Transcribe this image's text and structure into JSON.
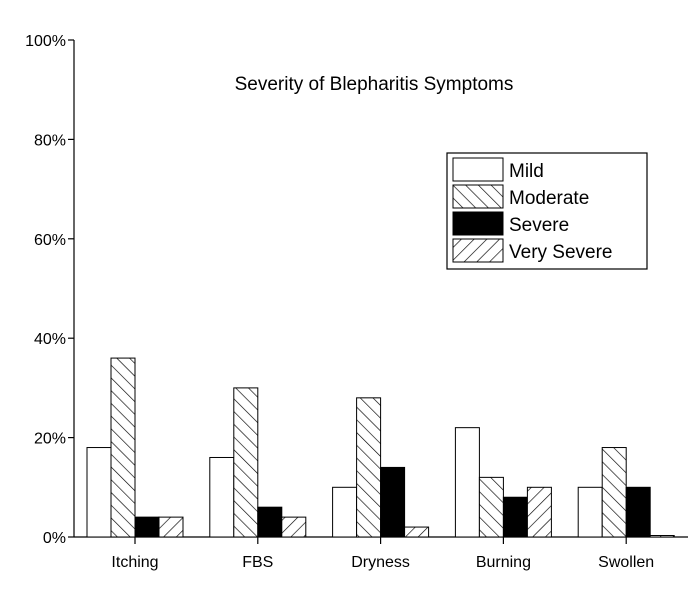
{
  "chart_data": {
    "type": "bar",
    "title": "Severity of Blepharitis Symptoms",
    "xlabel": "",
    "ylabel": "",
    "categories": [
      "Itching",
      "FBS",
      "Dryness",
      "Burning",
      "Swollen"
    ],
    "series": [
      {
        "name": "Mild",
        "values": [
          18,
          16,
          10,
          22,
          10
        ],
        "pattern": "empty"
      },
      {
        "name": "Moderate",
        "values": [
          36,
          30,
          28,
          12,
          18
        ],
        "pattern": "backslash"
      },
      {
        "name": "Severe",
        "values": [
          4,
          6,
          14,
          8,
          10
        ],
        "pattern": "solid"
      },
      {
        "name": "Very Severe",
        "values": [
          4,
          4,
          2,
          10,
          0.3
        ],
        "pattern": "slash"
      }
    ],
    "ylim": [
      0,
      100
    ],
    "yticks": [
      "0%",
      "20%",
      "40%",
      "60%",
      "80%",
      "100%"
    ],
    "grid": false,
    "legend_position": "top-right",
    "colors": {
      "stroke": "#000000",
      "fill_solid": "#000000",
      "fill_empty": "#ffffff"
    }
  }
}
